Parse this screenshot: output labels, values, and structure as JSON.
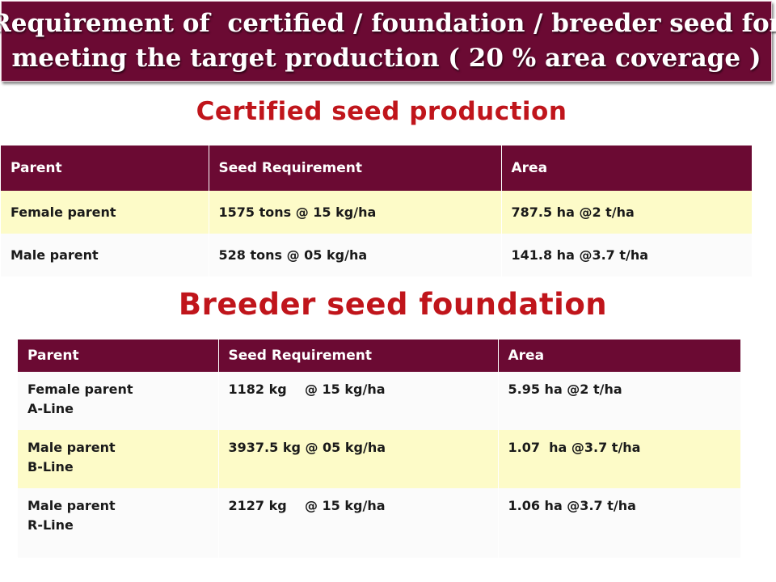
{
  "title": {
    "line1": "Requirement of  certified / foundation / breeder seed for",
    "line2": "meeting the target production ( 20 % area coverage )"
  },
  "sections": [
    {
      "heading": "Certified seed production",
      "columns": [
        "Parent",
        "Seed Requirement",
        "Area"
      ],
      "rows": [
        {
          "parent": [
            "Female parent"
          ],
          "seed_requirement": "1575 tons @ 15 kg/ha",
          "area": "787.5 ha @2 t/ha"
        },
        {
          "parent": [
            "Male parent"
          ],
          "seed_requirement": "528 tons @ 05 kg/ha",
          "area": "141.8 ha @3.7 t/ha"
        }
      ]
    },
    {
      "heading": "Breeder seed foundation",
      "columns": [
        "Parent",
        "Seed Requirement",
        "Area"
      ],
      "rows": [
        {
          "parent": [
            "Female parent",
            "A-Line"
          ],
          "seed_requirement": "1182 kg    @ 15 kg/ha",
          "area": "5.95 ha @2 t/ha"
        },
        {
          "parent": [
            "Male parent",
            "B-Line"
          ],
          "seed_requirement": "3937.5 kg @ 05 kg/ha",
          "area": "1.07  ha @3.7 t/ha"
        },
        {
          "parent": [
            "Male parent",
            "R-Line"
          ],
          "seed_requirement": "2127 kg    @ 15 kg/ha",
          "area": "1.06 ha @3.7 t/ha"
        }
      ]
    }
  ],
  "colors": {
    "banner": "#6b0a33",
    "heading": "#c0151b",
    "row_highlight": "#fdfbc8"
  }
}
